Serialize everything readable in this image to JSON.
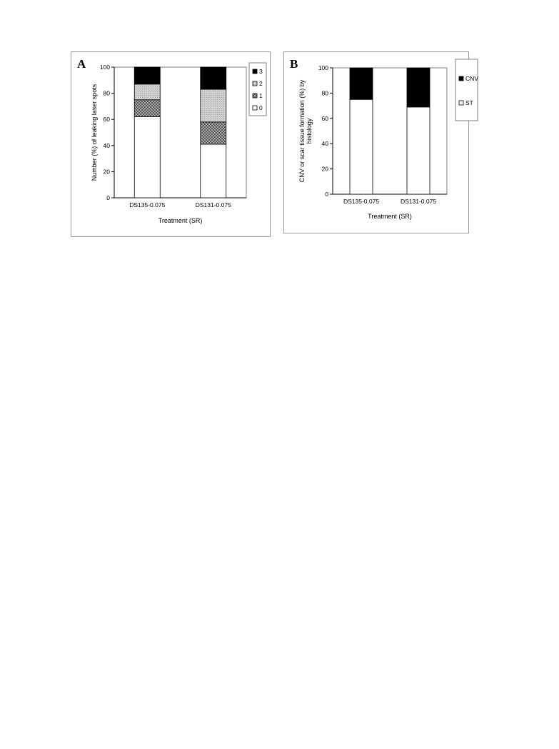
{
  "chart_data": [
    {
      "panel": "A",
      "type": "bar",
      "stacked": true,
      "categories": [
        "DS135-0.075",
        "DS131-0.075"
      ],
      "series": [
        {
          "name": "0",
          "values": [
            62,
            41
          ],
          "color": "#ffffff",
          "pattern": "none"
        },
        {
          "name": "1",
          "values": [
            13,
            17
          ],
          "color": "#555555",
          "pattern": "crosshatch"
        },
        {
          "name": "2",
          "values": [
            12,
            25
          ],
          "color": "#c8c8c8",
          "pattern": "dots"
        },
        {
          "name": "3",
          "values": [
            13,
            17
          ],
          "color": "#000000",
          "pattern": "solid"
        }
      ],
      "xlabel": "Treatment (SR)",
      "ylabel": "Number (%) of leaking laser spots",
      "ylim": [
        0,
        100
      ],
      "yticks": [
        "0",
        "20",
        "40",
        "60",
        "80",
        "100"
      ],
      "grid": false,
      "legend": "right",
      "legend_order": [
        "3",
        "2",
        "1",
        "0"
      ]
    },
    {
      "panel": "B",
      "type": "bar",
      "stacked": true,
      "categories": [
        "DS135-0.075",
        "DS131-0.075"
      ],
      "series": [
        {
          "name": "ST",
          "values": [
            75,
            69
          ],
          "color": "#ffffff",
          "pattern": "none"
        },
        {
          "name": "CNV",
          "values": [
            25,
            31
          ],
          "color": "#000000",
          "pattern": "solid"
        }
      ],
      "xlabel": "Treatment (SR)",
      "ylabel": "CNV or scar tissue formation (%) by histology",
      "ylabel_lines": [
        "CNV or scar tissue formation (%) by",
        "histology"
      ],
      "ylim": [
        0,
        100
      ],
      "yticks": [
        "0",
        "20",
        "40",
        "60",
        "80",
        "100"
      ],
      "grid": false,
      "legend": "right",
      "legend_order": [
        "CNV",
        "ST"
      ]
    }
  ],
  "panels": {
    "a_letter": "A",
    "b_letter": "B"
  }
}
